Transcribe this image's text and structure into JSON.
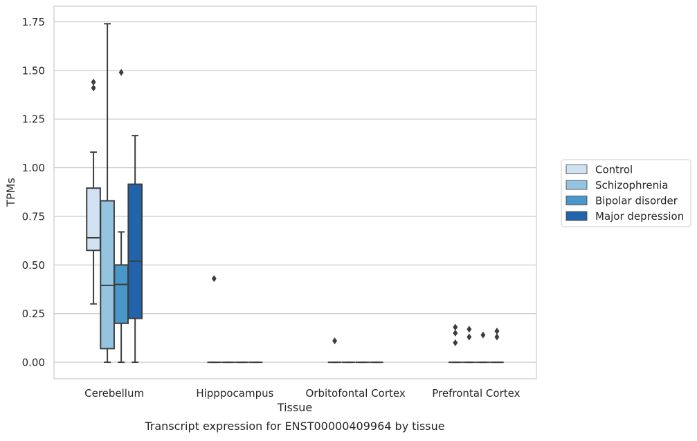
{
  "caption": "Transcript expression for ENST00000409964 by tissue",
  "chart_data": {
    "type": "boxplot",
    "title": "",
    "xlabel": "Tissue",
    "ylabel": "TPMs",
    "ylim": [
      -0.085,
      1.83
    ],
    "yticks": [
      0.0,
      0.25,
      0.5,
      0.75,
      1.0,
      1.25,
      1.5,
      1.75
    ],
    "ytick_labels": [
      "0.00",
      "0.25",
      "0.50",
      "0.75",
      "1.00",
      "1.25",
      "1.50",
      "1.75"
    ],
    "grid": "horizontal",
    "legend_position": "right",
    "categories": [
      "Cerebellum",
      "Hipppocampus",
      "Orbitofontal Cortex",
      "Prefrontal Cortex"
    ],
    "series": [
      {
        "name": "Control",
        "color": "#d0e1f2",
        "boxes": [
          {
            "whisker_low": 0.3,
            "q1": 0.575,
            "median": 0.64,
            "q3": 0.895,
            "whisker_high": 1.08,
            "outliers": [
              1.41,
              1.44
            ]
          },
          {
            "whisker_low": 0.0,
            "q1": 0.0,
            "median": 0.0,
            "q3": 0.0,
            "whisker_high": 0.0,
            "outliers": [
              0.43
            ]
          },
          {
            "whisker_low": 0.0,
            "q1": 0.0,
            "median": 0.0,
            "q3": 0.0,
            "whisker_high": 0.0,
            "outliers": [
              0.11
            ]
          },
          {
            "whisker_low": 0.0,
            "q1": 0.0,
            "median": 0.0,
            "q3": 0.0,
            "whisker_high": 0.0,
            "outliers": [
              0.1,
              0.15,
              0.18
            ]
          }
        ]
      },
      {
        "name": "Schizophrenia",
        "color": "#94c4df",
        "boxes": [
          {
            "whisker_low": 0.0,
            "q1": 0.07,
            "median": 0.395,
            "q3": 0.83,
            "whisker_high": 1.74,
            "outliers": []
          },
          {
            "whisker_low": 0.0,
            "q1": 0.0,
            "median": 0.0,
            "q3": 0.0,
            "whisker_high": 0.0,
            "outliers": []
          },
          {
            "whisker_low": 0.0,
            "q1": 0.0,
            "median": 0.0,
            "q3": 0.0,
            "whisker_high": 0.0,
            "outliers": []
          },
          {
            "whisker_low": 0.0,
            "q1": 0.0,
            "median": 0.0,
            "q3": 0.0,
            "whisker_high": 0.0,
            "outliers": [
              0.13,
              0.17
            ]
          }
        ]
      },
      {
        "name": "Bipolar disorder",
        "color": "#4a98c9",
        "boxes": [
          {
            "whisker_low": 0.0,
            "q1": 0.2,
            "median": 0.4,
            "q3": 0.5,
            "whisker_high": 0.67,
            "outliers": [
              1.49
            ]
          },
          {
            "whisker_low": 0.0,
            "q1": 0.0,
            "median": 0.0,
            "q3": 0.0,
            "whisker_high": 0.0,
            "outliers": []
          },
          {
            "whisker_low": 0.0,
            "q1": 0.0,
            "median": 0.0,
            "q3": 0.0,
            "whisker_high": 0.0,
            "outliers": []
          },
          {
            "whisker_low": 0.0,
            "q1": 0.0,
            "median": 0.0,
            "q3": 0.0,
            "whisker_high": 0.0,
            "outliers": [
              0.14
            ]
          }
        ]
      },
      {
        "name": "Major depression",
        "color": "#2164ab",
        "boxes": [
          {
            "whisker_low": 0.0,
            "q1": 0.225,
            "median": 0.52,
            "q3": 0.915,
            "whisker_high": 1.165,
            "outliers": []
          },
          {
            "whisker_low": 0.0,
            "q1": 0.0,
            "median": 0.0,
            "q3": 0.0,
            "whisker_high": 0.0,
            "outliers": []
          },
          {
            "whisker_low": 0.0,
            "q1": 0.0,
            "median": 0.0,
            "q3": 0.0,
            "whisker_high": 0.0,
            "outliers": []
          },
          {
            "whisker_low": 0.0,
            "q1": 0.0,
            "median": 0.0,
            "q3": 0.0,
            "whisker_high": 0.0,
            "outliers": [
              0.13,
              0.16
            ]
          }
        ]
      }
    ]
  }
}
